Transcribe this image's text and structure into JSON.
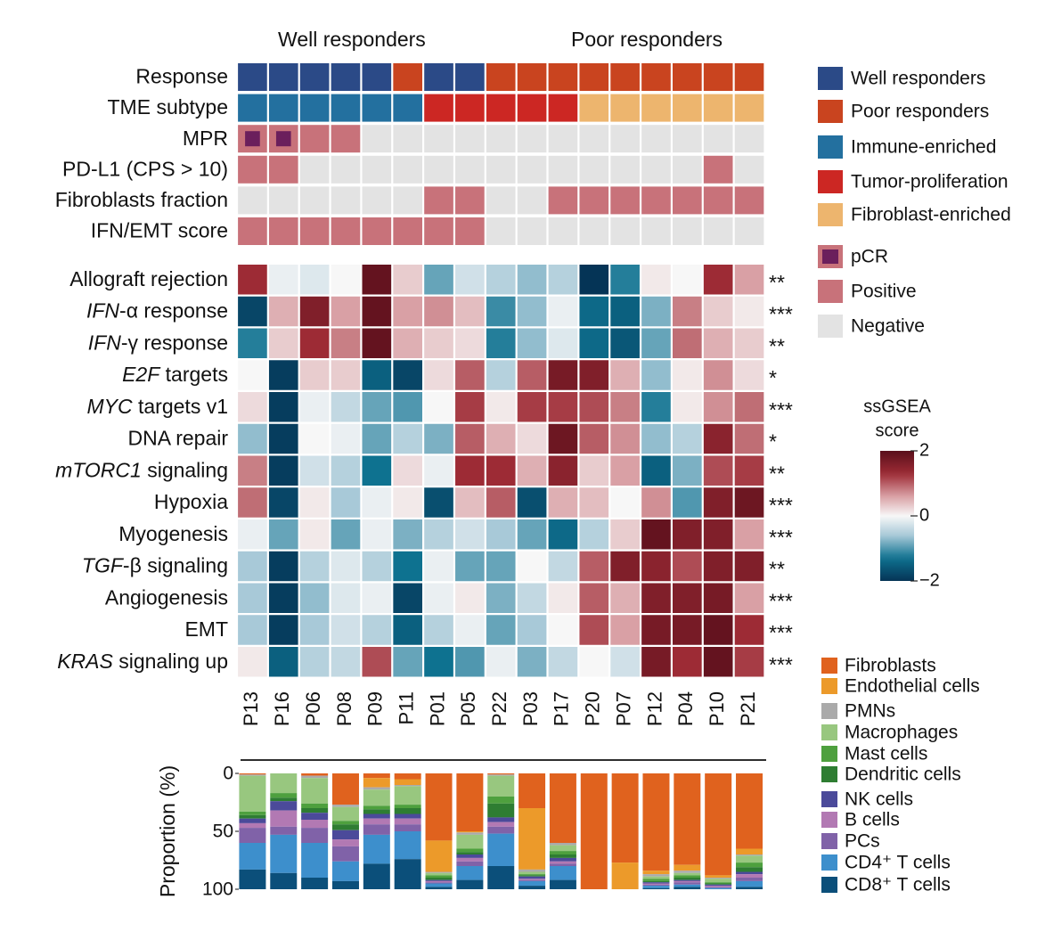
{
  "chart_data": [
    {
      "type": "heatmap",
      "column_groups": [
        "Well responders",
        "Poor responders"
      ],
      "rows": [
        {
          "name": "Response",
          "values": [
            "Well responders",
            "Well responders",
            "Well responders",
            "Well responders",
            "Well responders",
            "Poor responders",
            "Well responders",
            "Well responders",
            "Poor responders",
            "Poor responders",
            "Poor responders",
            "Poor responders",
            "Poor responders",
            "Poor responders",
            "Poor responders",
            "Poor responders",
            "Poor responders"
          ]
        },
        {
          "name": "TME subtype",
          "values": [
            "Immune-enriched",
            "Immune-enriched",
            "Immune-enriched",
            "Immune-enriched",
            "Immune-enriched",
            "Immune-enriched",
            "Tumor-proliferation",
            "Tumor-proliferation",
            "Tumor-proliferation",
            "Tumor-proliferation",
            "Tumor-proliferation",
            "Fibroblast-enriched",
            "Fibroblast-enriched",
            "Fibroblast-enriched",
            "Fibroblast-enriched",
            "Fibroblast-enriched",
            "Fibroblast-enriched"
          ]
        },
        {
          "name": "MPR",
          "values": [
            "pCR",
            "pCR",
            "Positive",
            "Positive",
            "Negative",
            "Negative",
            "Negative",
            "Negative",
            "Negative",
            "Negative",
            "Negative",
            "Negative",
            "Negative",
            "Negative",
            "Negative",
            "Negative",
            "Negative"
          ]
        },
        {
          "name": "PD-L1 (CPS > 10)",
          "values": [
            "Positive",
            "Positive",
            "Negative",
            "Negative",
            "Negative",
            "Negative",
            "Negative",
            "Negative",
            "Negative",
            "Negative",
            "Negative",
            "Negative",
            "Negative",
            "Negative",
            "Negative",
            "Positive",
            "Negative"
          ]
        },
        {
          "name": "Fibroblasts fraction",
          "values": [
            "Negative",
            "Negative",
            "Negative",
            "Negative",
            "Negative",
            "Negative",
            "Positive",
            "Positive",
            "Negative",
            "Negative",
            "Positive",
            "Positive",
            "Positive",
            "Positive",
            "Positive",
            "Positive",
            "Positive"
          ]
        },
        {
          "name": "IFN/EMT score",
          "values": [
            "Positive",
            "Positive",
            "Positive",
            "Positive",
            "Positive",
            "Positive",
            "Positive",
            "Positive",
            "Negative",
            "Negative",
            "Negative",
            "Negative",
            "Negative",
            "Negative",
            "Negative",
            "Negative",
            "Negative"
          ]
        }
      ],
      "legend": [
        {
          "name": "Well responders",
          "color": "#2b4a87"
        },
        {
          "name": "Poor responders",
          "color": "#c9441f"
        },
        {
          "name": "Immune-enriched",
          "color": "#23709f"
        },
        {
          "name": "Tumor-proliferation",
          "color": "#cc2723"
        },
        {
          "name": "Fibroblast-enriched",
          "color": "#edb56e"
        },
        {
          "name": "pCR",
          "color": "#6b1f5c"
        },
        {
          "name": "Positive",
          "color": "#c8727a"
        },
        {
          "name": "Negative",
          "color": "#e3e3e3"
        }
      ]
    },
    {
      "type": "heatmap",
      "categories": [
        "P13",
        "P16",
        "P06",
        "P08",
        "P09",
        "P11",
        "P01",
        "P05",
        "P22",
        "P03",
        "P17",
        "P20",
        "P07",
        "P12",
        "P04",
        "P10",
        "P21"
      ],
      "rows": [
        {
          "name": [
            {
              "t": "Allograft rejection"
            }
          ],
          "significance": "**",
          "values": [
            1.3,
            -0.1,
            -0.2,
            0,
            1.9,
            0.3,
            -0.9,
            -0.3,
            -0.5,
            -0.7,
            -0.5,
            -2.0,
            -1.2,
            0.1,
            0,
            1.3,
            0.6
          ]
        },
        {
          "name": [
            {
              "t": "IFN",
              "i": true
            },
            {
              "t": "-α response"
            }
          ],
          "significance": "***",
          "values": [
            -1.8,
            0.5,
            1.6,
            0.6,
            1.9,
            0.6,
            0.7,
            0.4,
            -1.1,
            -0.7,
            -0.1,
            -1.4,
            -1.5,
            -0.8,
            0.8,
            0.3,
            0.1
          ]
        },
        {
          "name": [
            {
              "t": "IFN",
              "i": true
            },
            {
              "t": "-γ response"
            }
          ],
          "significance": "**",
          "values": [
            -1.2,
            0.3,
            1.3,
            0.8,
            1.9,
            0.5,
            0.3,
            0.2,
            -1.2,
            -0.7,
            -0.2,
            -1.4,
            -1.6,
            -0.9,
            0.9,
            0.5,
            0.3
          ]
        },
        {
          "name": [
            {
              "t": "E2F",
              "i": true
            },
            {
              "t": " targets"
            }
          ],
          "significance": "*",
          "values": [
            0,
            -1.9,
            0.3,
            0.3,
            -1.5,
            -1.8,
            0.2,
            1.0,
            -0.5,
            1.0,
            1.7,
            1.6,
            0.5,
            -0.7,
            0.1,
            0.7,
            0.2
          ]
        },
        {
          "name": [
            {
              "t": "MYC",
              "i": true
            },
            {
              "t": " targets v1"
            }
          ],
          "significance": "***",
          "values": [
            0.2,
            -1.9,
            -0.1,
            -0.4,
            -0.9,
            -1.0,
            0,
            1.2,
            0.1,
            1.2,
            1.2,
            1.1,
            0.8,
            -1.2,
            0.1,
            0.7,
            0.9
          ]
        },
        {
          "name": [
            {
              "t": "DNA repair"
            }
          ],
          "significance": "*",
          "values": [
            -0.7,
            -1.9,
            0,
            -0.1,
            -0.9,
            -0.5,
            -0.8,
            1.0,
            0.5,
            0.2,
            1.8,
            1.0,
            0.7,
            -0.7,
            -0.5,
            1.5,
            0.9
          ]
        },
        {
          "name": [
            {
              "t": "mTORC1",
              "i": true
            },
            {
              "t": " signaling"
            }
          ],
          "significance": "**",
          "values": [
            0.8,
            -1.9,
            -0.3,
            -0.5,
            -1.3,
            0.2,
            -0.1,
            1.3,
            1.3,
            0.5,
            1.5,
            0.3,
            0.6,
            -1.5,
            -0.8,
            1.1,
            1.2
          ]
        },
        {
          "name": [
            {
              "t": "Hypoxia"
            }
          ],
          "significance": "***",
          "values": [
            0.9,
            -1.8,
            0.1,
            -0.6,
            -0.1,
            0.1,
            -1.7,
            0.4,
            1.0,
            -1.7,
            0.5,
            0.4,
            0,
            0.7,
            -1.0,
            1.6,
            1.8
          ]
        },
        {
          "name": [
            {
              "t": "Myogenesis"
            }
          ],
          "significance": "***",
          "values": [
            -0.1,
            -0.9,
            0.1,
            -0.9,
            -0.1,
            -0.8,
            -0.5,
            -0.3,
            -0.6,
            -0.9,
            -1.4,
            -0.5,
            0.3,
            1.9,
            1.6,
            1.6,
            0.6
          ]
        },
        {
          "name": [
            {
              "t": "TGF",
              "i": true
            },
            {
              "t": "-β signaling"
            }
          ],
          "significance": "**",
          "values": [
            -0.6,
            -1.9,
            -0.5,
            -0.2,
            -0.5,
            -1.3,
            -0.1,
            -0.9,
            -0.9,
            0,
            -0.4,
            1.0,
            1.6,
            1.5,
            1.1,
            1.6,
            1.6
          ]
        },
        {
          "name": [
            {
              "t": "Angiogenesis"
            }
          ],
          "significance": "***",
          "values": [
            -0.6,
            -1.9,
            -0.7,
            -0.2,
            -0.1,
            -1.8,
            -0.1,
            0.1,
            -0.8,
            -0.4,
            0.1,
            1.0,
            0.5,
            1.6,
            1.6,
            1.7,
            0.6
          ]
        },
        {
          "name": [
            {
              "t": "EMT"
            }
          ],
          "significance": "***",
          "values": [
            -0.6,
            -1.9,
            -0.6,
            -0.3,
            -0.5,
            -1.5,
            -0.5,
            -0.1,
            -0.9,
            -0.6,
            0,
            1.1,
            0.6,
            1.7,
            1.7,
            1.9,
            1.3
          ]
        },
        {
          "name": [
            {
              "t": "KRAS",
              "i": true
            },
            {
              "t": " signaling up"
            }
          ],
          "significance": "***",
          "values": [
            0.1,
            -1.5,
            -0.5,
            -0.4,
            1.1,
            -0.9,
            -1.3,
            -1.0,
            -0.1,
            -0.8,
            -0.4,
            0,
            -0.3,
            1.7,
            1.3,
            1.9,
            1.2
          ]
        }
      ],
      "colorbar": {
        "title_lines": [
          "ssGSEA",
          "score"
        ],
        "lim": [
          -2,
          2
        ],
        "ticks": [
          2,
          0,
          {
            "value": -2,
            "label": "−2"
          }
        ]
      }
    },
    {
      "type": "stacked_bar",
      "ylabel": "Proportion (%)",
      "ylim": [
        0,
        100
      ],
      "yticks": [
        0,
        50,
        100
      ],
      "y_inverted": true,
      "series": [
        {
          "name": "Fibroblasts",
          "color": "#e0621e",
          "values": [
            1,
            0,
            2,
            27,
            4,
            5,
            58,
            50,
            1,
            30,
            60,
            100,
            77,
            84,
            79,
            88,
            65
          ]
        },
        {
          "name": "Endothelial cells",
          "color": "#ec9a2a",
          "values": [
            0,
            0,
            0,
            0,
            8,
            5,
            27,
            1,
            0,
            53,
            0,
            0,
            23,
            3,
            5,
            2,
            5
          ]
        },
        {
          "name": "PMNs",
          "color": "#aaaaaa",
          "values": [
            1,
            0,
            2,
            2,
            2,
            1,
            1,
            2,
            1,
            2,
            2,
            0,
            0,
            2,
            2,
            1,
            1
          ]
        },
        {
          "name": "Macrophages",
          "color": "#98c77f",
          "values": [
            31,
            17,
            22,
            12,
            14,
            16,
            2,
            12,
            18,
            2,
            5,
            0,
            0,
            2,
            2,
            3,
            6
          ]
        },
        {
          "name": "Mast cells",
          "color": "#4ea03e",
          "values": [
            3,
            4,
            4,
            3,
            3,
            3,
            2,
            3,
            6,
            1,
            3,
            0,
            0,
            2,
            2,
            1,
            4
          ]
        },
        {
          "name": "Dendritic cells",
          "color": "#2e7d32",
          "values": [
            3,
            3,
            4,
            5,
            4,
            5,
            2,
            2,
            12,
            1,
            3,
            0,
            0,
            1,
            2,
            1,
            4
          ]
        },
        {
          "name": "NK cells",
          "color": "#4b4a9a",
          "values": [
            4,
            8,
            6,
            8,
            4,
            4,
            1,
            3,
            4,
            2,
            3,
            0,
            0,
            1,
            1,
            1,
            2
          ]
        },
        {
          "name": "B cells",
          "color": "#b279b3",
          "values": [
            4,
            14,
            7,
            6,
            5,
            5,
            1,
            3,
            4,
            1,
            2,
            0,
            0,
            1,
            1,
            1,
            3
          ]
        },
        {
          "name": "PCs",
          "color": "#8062a8",
          "values": [
            13,
            7,
            13,
            13,
            9,
            6,
            1,
            4,
            6,
            1,
            2,
            0,
            0,
            1,
            2,
            1,
            3
          ]
        },
        {
          "name": "CD4⁺ T cells",
          "color": "#3d8fcc",
          "values": [
            23,
            33,
            30,
            17,
            25,
            24,
            3,
            12,
            28,
            4,
            12,
            0,
            0,
            2,
            2,
            1,
            5
          ]
        },
        {
          "name": "CD8⁺ T cells",
          "color": "#0b4f7a",
          "values": [
            17,
            14,
            10,
            7,
            22,
            26,
            2,
            8,
            20,
            3,
            8,
            0,
            0,
            1,
            2,
            0,
            2
          ]
        }
      ]
    }
  ]
}
